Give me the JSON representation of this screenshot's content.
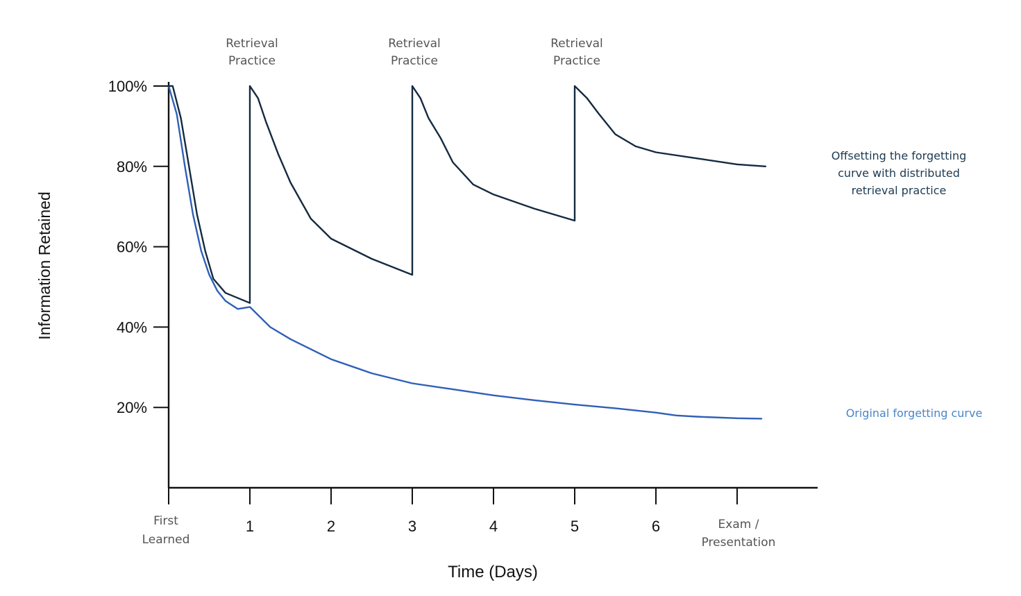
{
  "chart_data": {
    "type": "line",
    "title": "",
    "xlabel": "Time (Days)",
    "ylabel": "Information Retained",
    "xlim": [
      0,
      8
    ],
    "ylim": [
      0,
      100
    ],
    "x_ticks": [
      {
        "x": 0,
        "lines": [
          "First",
          "Learned"
        ]
      },
      {
        "x": 1,
        "lines": [
          "1"
        ]
      },
      {
        "x": 2,
        "lines": [
          "2"
        ]
      },
      {
        "x": 3,
        "lines": [
          "3"
        ]
      },
      {
        "x": 4,
        "lines": [
          "4"
        ]
      },
      {
        "x": 5,
        "lines": [
          "5"
        ]
      },
      {
        "x": 6,
        "lines": [
          "6"
        ]
      },
      {
        "x": 7,
        "lines": [
          "Exam /",
          "Presentation"
        ]
      }
    ],
    "y_ticks": [
      {
        "y": 100,
        "label": "100%"
      },
      {
        "y": 80,
        "label": "80%"
      },
      {
        "y": 60,
        "label": "60%"
      },
      {
        "y": 40,
        "label": "40%"
      },
      {
        "y": 20,
        "label": "20%"
      }
    ],
    "annotations": [
      {
        "x": 1,
        "lines": [
          "Retrieval",
          "Practice"
        ]
      },
      {
        "x": 3,
        "lines": [
          "Retrieval",
          "Practice"
        ]
      },
      {
        "x": 5,
        "lines": [
          "Retrieval",
          "Practice"
        ]
      }
    ],
    "series": [
      {
        "name": "Original forgetting curve",
        "label_lines": [
          "Original forgetting curve"
        ],
        "color": "#2f5fb8",
        "points": [
          [
            0,
            100
          ],
          [
            0.1,
            93
          ],
          [
            0.2,
            80
          ],
          [
            0.3,
            68
          ],
          [
            0.4,
            59
          ],
          [
            0.5,
            53
          ],
          [
            0.6,
            49
          ],
          [
            0.7,
            46.5
          ],
          [
            0.85,
            44.5
          ],
          [
            1,
            45
          ],
          [
            1.25,
            40
          ],
          [
            1.5,
            37
          ],
          [
            2,
            32
          ],
          [
            2.5,
            28.5
          ],
          [
            3,
            26
          ],
          [
            3.5,
            24.5
          ],
          [
            4,
            23
          ],
          [
            4.5,
            21.8
          ],
          [
            5,
            20.7
          ],
          [
            5.5,
            19.8
          ],
          [
            6,
            18.7
          ],
          [
            6.25,
            18
          ],
          [
            6.5,
            17.7
          ],
          [
            7,
            17.3
          ],
          [
            7.3,
            17.2
          ]
        ]
      },
      {
        "name": "Offsetting the forgetting curve with distributed retrieval practice",
        "label_lines": [
          "Offsetting the forgetting",
          "curve with distributed",
          "retrieval practice"
        ],
        "color": "#142a40",
        "points": [
          [
            0,
            100
          ],
          [
            0.05,
            100
          ],
          [
            0.15,
            92
          ],
          [
            0.25,
            80
          ],
          [
            0.35,
            68
          ],
          [
            0.45,
            59
          ],
          [
            0.55,
            52
          ],
          [
            0.7,
            48.5
          ],
          [
            1,
            46
          ],
          [
            1,
            100
          ],
          [
            1.1,
            97
          ],
          [
            1.2,
            91
          ],
          [
            1.35,
            83
          ],
          [
            1.5,
            76
          ],
          [
            1.75,
            67
          ],
          [
            2,
            62
          ],
          [
            2.5,
            57
          ],
          [
            3,
            53
          ],
          [
            3,
            100
          ],
          [
            3.1,
            97
          ],
          [
            3.2,
            92
          ],
          [
            3.35,
            87
          ],
          [
            3.5,
            81
          ],
          [
            3.75,
            75.5
          ],
          [
            4,
            73
          ],
          [
            4.5,
            69.5
          ],
          [
            5,
            66.5
          ],
          [
            5,
            100
          ],
          [
            5.15,
            97
          ],
          [
            5.3,
            93
          ],
          [
            5.5,
            88
          ],
          [
            5.75,
            85
          ],
          [
            6,
            83.5
          ],
          [
            6.5,
            82
          ],
          [
            7,
            80.5
          ],
          [
            7.35,
            80
          ]
        ]
      }
    ]
  }
}
